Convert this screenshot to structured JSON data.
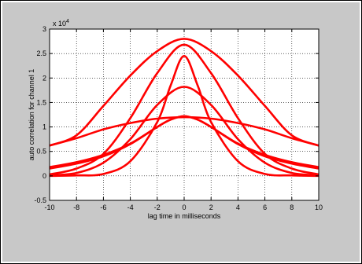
{
  "chart_data": {
    "type": "line",
    "title": "",
    "xlabel": "lag time in milliseconds",
    "ylabel": "auto correlation for channel 1",
    "y_exponent_label": "x 10",
    "y_exponent_power": "4",
    "xlim": [
      -10,
      10
    ],
    "ylim": [
      -0.5,
      3
    ],
    "x_ticks": [
      -10,
      -8,
      -6,
      -4,
      -2,
      0,
      2,
      4,
      6,
      8,
      10
    ],
    "x_tick_labels": [
      "-10",
      "-8",
      "-6",
      "-4",
      "-2",
      "0",
      "2",
      "4",
      "6",
      "8",
      "10"
    ],
    "y_ticks": [
      -0.5,
      0,
      0.5,
      1,
      1.5,
      2,
      2.5,
      3
    ],
    "y_tick_labels": [
      "-0.5",
      "0",
      "0.5",
      "1",
      "1.5",
      "2",
      "2.5",
      "3"
    ],
    "grid": true,
    "line_color": "#ff0000",
    "series": [
      {
        "x": [
          -10,
          -8,
          -6,
          -4,
          -2,
          0,
          2,
          4,
          6,
          8,
          10
        ],
        "y": [
          0.62,
          0.83,
          1.43,
          2.05,
          2.55,
          2.8,
          2.55,
          2.05,
          1.43,
          0.83,
          0.62
        ]
      },
      {
        "x": [
          -10,
          -8,
          -6,
          -4,
          -2,
          0,
          2,
          4,
          6,
          8,
          10
        ],
        "y": [
          0.03,
          0.15,
          0.45,
          1.18,
          2.1,
          2.68,
          2.1,
          1.18,
          0.45,
          0.15,
          0.03
        ]
      },
      {
        "x": [
          -10,
          -8,
          -6,
          -4,
          -2,
          -1,
          0,
          1,
          2,
          4,
          6,
          8,
          10
        ],
        "y": [
          0.0,
          0.01,
          0.04,
          0.3,
          1.1,
          1.85,
          2.45,
          1.85,
          1.1,
          0.3,
          0.04,
          0.01,
          0.0
        ]
      },
      {
        "x": [
          -10,
          -8,
          -6,
          -4,
          -2,
          0,
          2,
          4,
          6,
          8,
          10
        ],
        "y": [
          0.01,
          0.06,
          0.27,
          0.75,
          1.45,
          1.82,
          1.45,
          0.75,
          0.27,
          0.06,
          0.01
        ]
      },
      {
        "x": [
          -10,
          -8,
          -6,
          -4,
          -2,
          -1,
          0,
          1,
          2,
          4,
          6,
          8,
          10
        ],
        "y": [
          0.15,
          0.25,
          0.4,
          0.65,
          1.0,
          1.15,
          1.22,
          1.15,
          1.0,
          0.65,
          0.4,
          0.25,
          0.15
        ]
      },
      {
        "x": [
          -10,
          -8,
          -6,
          -4,
          -2,
          0,
          2,
          4,
          6,
          8,
          10
        ],
        "y": [
          0.62,
          0.77,
          0.95,
          1.08,
          1.17,
          1.2,
          1.17,
          1.08,
          0.95,
          0.77,
          0.62
        ]
      },
      {
        "x": [
          -10,
          -8,
          -6,
          -4,
          -2,
          -1,
          0,
          1,
          2,
          4,
          6,
          8,
          10
        ],
        "y": [
          0.18,
          0.28,
          0.43,
          0.66,
          1.0,
          1.15,
          1.22,
          1.15,
          1.0,
          0.66,
          0.43,
          0.28,
          0.18
        ]
      }
    ]
  }
}
